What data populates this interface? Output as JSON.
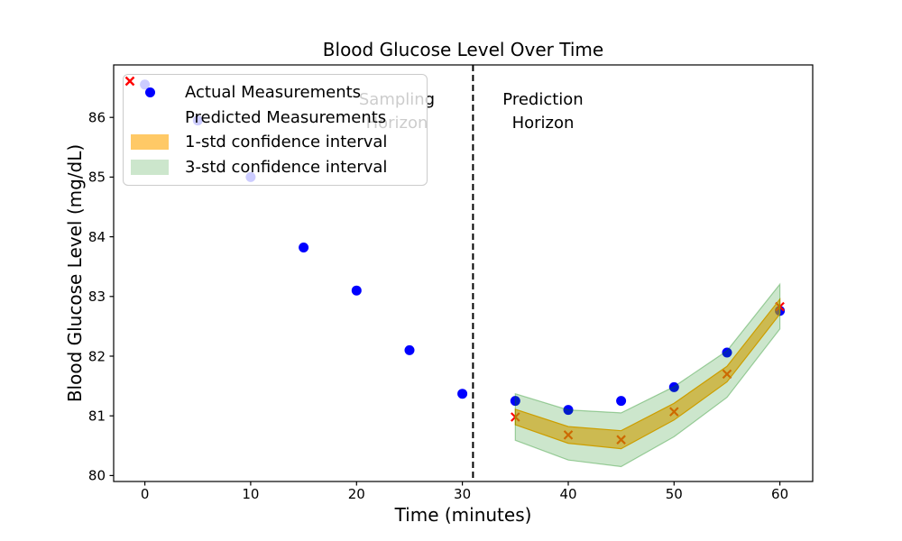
{
  "chart_data": {
    "type": "scatter",
    "title": "Blood Glucose Level Over Time",
    "xlabel": "Time (minutes)",
    "ylabel": "Blood Glucose Level (mg/dL)",
    "xlim": [
      -2.95,
      63.1
    ],
    "ylim": [
      79.9,
      86.88
    ],
    "xticks": [
      0,
      10,
      20,
      30,
      40,
      50,
      60
    ],
    "yticks": [
      80,
      81,
      82,
      83,
      84,
      85,
      86
    ],
    "grid": false,
    "divider": {
      "x": 31,
      "style": "dashed",
      "color": "#000000"
    },
    "annotations": {
      "sampling": {
        "line1": "Sampling",
        "line2": "Horizon"
      },
      "prediction": {
        "line1": "Prediction",
        "line2": "Horizon"
      }
    },
    "series": [
      {
        "name": "Actual Measurements",
        "marker": "circle",
        "color": "#0000ff",
        "x": [
          0,
          5,
          10,
          15,
          20,
          25,
          30,
          35,
          40,
          45,
          50,
          55,
          60
        ],
        "y": [
          86.55,
          85.95,
          85.0,
          83.82,
          83.1,
          82.1,
          81.37,
          81.25,
          81.1,
          81.25,
          81.48,
          82.06,
          82.76
        ]
      },
      {
        "name": "Predicted Measurements",
        "marker": "x",
        "color": "#ff0000",
        "x": [
          35,
          40,
          45,
          50,
          55,
          60
        ],
        "y": [
          80.98,
          80.68,
          80.6,
          81.07,
          81.7,
          82.83
        ]
      }
    ],
    "uncertainty": {
      "x": [
        35,
        40,
        45,
        50,
        55,
        60
      ],
      "mean": [
        80.98,
        80.68,
        80.6,
        81.07,
        81.7,
        82.83
      ],
      "std": [
        0.13,
        0.14,
        0.15,
        0.14,
        0.13,
        0.125
      ],
      "bands": [
        {
          "name": "1-std confidence interval",
          "sigma": 1,
          "color": "#ffa500",
          "opacity": 0.6
        },
        {
          "name": "3-std confidence interval",
          "sigma": 3,
          "color": "#008000",
          "opacity": 0.2
        }
      ]
    },
    "legend": {
      "position": "upper left",
      "items": [
        {
          "label": "Actual Measurements",
          "marker": "circle",
          "color": "#0000ff"
        },
        {
          "label": "Predicted Measurements",
          "marker": "x",
          "color": "#ff0000"
        },
        {
          "label": "1-std confidence interval",
          "marker": "patch",
          "color": "rgba(255,165,0,0.6)"
        },
        {
          "label": "3-std confidence interval",
          "marker": "patch",
          "color": "rgba(0,128,0,0.2)"
        }
      ]
    }
  }
}
